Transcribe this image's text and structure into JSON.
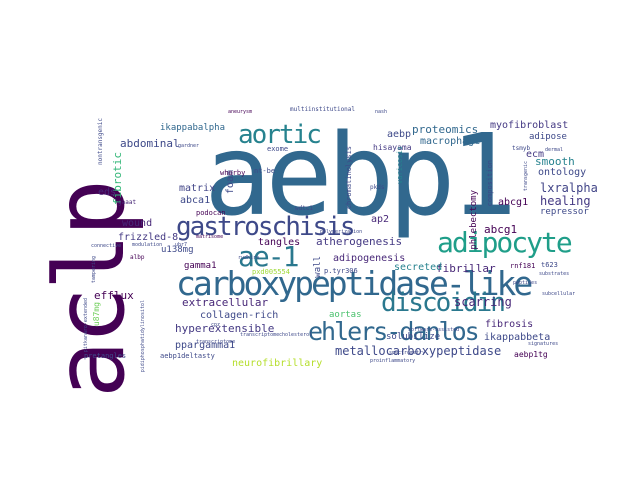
{
  "words": [
    {
      "text": "aebp1",
      "color": "#31688e"
    },
    {
      "text": "aclp",
      "color": "#440154"
    },
    {
      "text": "carboxypeptidase-like",
      "color": "#31688e"
    },
    {
      "text": "gastroschisis",
      "color": "#3e4989"
    },
    {
      "text": "aortic",
      "color": "#26828e"
    },
    {
      "text": "adipocyte",
      "color": "#1f9e89"
    },
    {
      "text": "ae-1",
      "color": "#2a788e"
    },
    {
      "text": "discoidin",
      "color": "#2a788e"
    },
    {
      "text": "ehlers-danlos",
      "color": "#31688e"
    },
    {
      "text": "metallocarboxypeptidase",
      "color": "#3e4989"
    },
    {
      "text": "neurofibrillary",
      "color": "#b5de2b"
    },
    {
      "text": "proteomics",
      "color": "#31688e"
    },
    {
      "text": "myofibroblast",
      "color": "#443983"
    },
    {
      "text": "macrophage",
      "color": "#31688e"
    },
    {
      "text": "adipose",
      "color": "#3e4989"
    },
    {
      "text": "smooth",
      "color": "#26828e"
    },
    {
      "text": "ontology",
      "color": "#3e4989"
    },
    {
      "text": "lxralpha",
      "color": "#414487"
    },
    {
      "text": "healing",
      "color": "#443983"
    },
    {
      "text": "repressor",
      "color": "#3e4989"
    },
    {
      "text": "ecm",
      "color": "#443983"
    },
    {
      "text": "abcg1",
      "color": "#440154"
    },
    {
      "text": "fibrillar",
      "color": "#482878"
    },
    {
      "text": "scarring",
      "color": "#482878"
    },
    {
      "text": "fibrosis",
      "color": "#482878"
    },
    {
      "text": "ikappabbeta",
      "color": "#3e4989"
    },
    {
      "text": "aebp1tg",
      "color": "#440154"
    },
    {
      "text": "abdominal",
      "color": "#3e4989"
    },
    {
      "text": "fibrotic",
      "color": "#35b779"
    },
    {
      "text": "eds",
      "color": "#482878"
    },
    {
      "text": "matrix",
      "color": "#414487"
    },
    {
      "text": "abca1",
      "color": "#3e4989"
    },
    {
      "text": "foam",
      "color": "#3e4989"
    },
    {
      "text": "ikappabalpha",
      "color": "#31688e"
    },
    {
      "text": "aebp",
      "color": "#3e4989"
    },
    {
      "text": "wound",
      "color": "#482878"
    },
    {
      "text": "frizzled-8",
      "color": "#443983"
    },
    {
      "text": "efflux",
      "color": "#440154"
    },
    {
      "text": "extracellular",
      "color": "#482878"
    },
    {
      "text": "collagen-rich",
      "color": "#3e4989"
    },
    {
      "text": "hyperextensible",
      "color": "#443983"
    },
    {
      "text": "pparg​amma1",
      "color": "#3e4989"
    },
    {
      "text": "aortas",
      "color": "#4ac16d"
    },
    {
      "text": "atherogenesis",
      "color": "#443983"
    },
    {
      "text": "adipogenesis",
      "color": "#482878"
    },
    {
      "text": "secreted",
      "color": "#26828e"
    },
    {
      "text": "ap2",
      "color": "#482878"
    },
    {
      "text": "tangles",
      "color": "#440154"
    },
    {
      "text": "wall",
      "color": "#3e4989"
    },
    {
      "text": "u138mg",
      "color": "#3e4989"
    },
    {
      "text": "gamma1",
      "color": "#440154"
    },
    {
      "text": "solubilize",
      "color": "#3e4989"
    },
    {
      "text": "p.tyr306",
      "color": "#3e4989"
    },
    {
      "text": "pretangles",
      "color": "#3e4989"
    },
    {
      "text": "aebp1deltasty",
      "color": "#3e4989"
    },
    {
      "text": "phlebectomy",
      "color": "#440154"
    },
    {
      "text": "u87mg",
      "color": "#6ece58"
    },
    {
      "text": "podocan",
      "color": "#440154"
    },
    {
      "text": "hisayama",
      "color": "#443983"
    },
    {
      "text": "exome",
      "color": "#3e4989"
    },
    {
      "text": "whorby",
      "color": "#440154"
    },
    {
      "text": "nt-be",
      "color": "#3e4989"
    },
    {
      "text": "wdtc1",
      "color": "#3e4989"
    },
    {
      "text": "pkds",
      "color": "#3e4989"
    },
    {
      "text": "abcg1",
      "color": "#440154"
    },
    {
      "text": "pxd005554",
      "color": "#a0da39"
    },
    {
      "text": "rnf181",
      "color": "#440154"
    },
    {
      "text": "t623",
      "color": "#3e4989"
    },
    {
      "text": "chromatinolysis",
      "color": "#3e4989"
    },
    {
      "text": "varicosis",
      "color": "#26828e"
    },
    {
      "text": "composition",
      "color": "#3e4989"
    },
    {
      "text": "tsmyb",
      "color": "#3e4989"
    },
    {
      "text": "multiinstitutional",
      "color": "#3e4989"
    },
    {
      "text": "aneurysm",
      "color": "#440154"
    },
    {
      "text": "nash",
      "color": "#3e4989"
    },
    {
      "text": "gaaat",
      "color": "#482878"
    },
    {
      "text": "albp",
      "color": "#440154"
    },
    {
      "text": "matrisome",
      "color": "#440154"
    },
    {
      "text": "rudhira",
      "color": "#3e4989"
    },
    {
      "text": "transcriptome",
      "color": "#3e4989"
    },
    {
      "text": "cholesterol",
      "color": "#3e4989"
    },
    {
      "text": "signatures",
      "color": "#3e4989"
    },
    {
      "text": "spectrometry",
      "color": "#3e4989"
    },
    {
      "text": "proinflammatory",
      "color": "#3e4989"
    },
    {
      "text": "software-assisted",
      "color": "#3e4989"
    },
    {
      "text": "dermal",
      "color": "#3e4989"
    },
    {
      "text": "transcriptome",
      "color": "#3e4989"
    },
    {
      "text": "nontransgenic",
      "color": "#3e4989"
    },
    {
      "text": "gardner",
      "color": "#3e4989"
    },
    {
      "text": "polymerization",
      "color": "#3e4989"
    },
    {
      "text": "connective",
      "color": "#3e4989"
    },
    {
      "text": "tampering",
      "color": "#3e4989"
    },
    {
      "text": "ubr7",
      "color": "#3e4989"
    },
    {
      "text": "cpz",
      "color": "#3e4989"
    },
    {
      "text": "modulation",
      "color": "#3e4989"
    },
    {
      "text": "substrates",
      "color": "#3e4989"
    },
    {
      "text": "peptides",
      "color": "#3e4989"
    },
    {
      "text": "subcellular",
      "color": "#3e4989"
    },
    {
      "text": "pitkanaro-extended",
      "color": "#3e4989"
    },
    {
      "text": "pidiphosphatidylinositol",
      "color": "#3e4989"
    },
    {
      "text": "transgenic",
      "color": "#3e4989"
    }
  ]
}
